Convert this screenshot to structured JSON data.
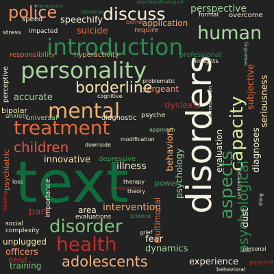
{
  "words": {
    "text": "text",
    "disorders": "disorders",
    "introduction": "introduction",
    "personality": "personality",
    "mental": "mental",
    "treatment": "treatment",
    "human": "human",
    "health": "health",
    "disorder": "disorder",
    "aspects": "aspects",
    "capacity": "capacity",
    "police": "police",
    "discuss": "discuss",
    "borderline": "borderline",
    "adolescents": "adolescents",
    "children": "children",
    "psychological": "psychological",
    "perspective": "perspective",
    "speechify": "speechify",
    "suicide": "suicide",
    "application": "application",
    "accurate": "accurate",
    "sergeant": "sergeant",
    "dyslexia": "dyslexia",
    "innovative": "innovative",
    "illness": "illness",
    "intervention": "intervention",
    "area": "area",
    "part": "part",
    "fear": "fear",
    "dynamics": "dynamics",
    "experience": "experience",
    "unplugged": "unplugged",
    "officers": "officers",
    "training": "training",
    "need": "need",
    "diagnostic": "diagnostic",
    "universal": "universal",
    "bipolar": "bipolar",
    "psyche": "psyche",
    "responsibility": "responsibility",
    "hyperactivity": "hyperactivity",
    "professional": "professional",
    "overcome": "overcome",
    "formal": "formal",
    "require": "require",
    "speed": "speed",
    "stress": "stress",
    "impacted": "impacted",
    "insights": "insights",
    "problematic": "problematic",
    "cognitive": "cognitive",
    "anxiety": "anxiety",
    "approach": "approach",
    "modification": "modification",
    "downside": "downside",
    "depressive": "depressive",
    "loss": "loss",
    "therapy": "therapy",
    "fundamental": "fundamental",
    "theory": "theory",
    "power": "power",
    "evaluations": "evaluations",
    "science": "science",
    "social": "social",
    "complexity": "complexity",
    "personal": "personal",
    "behavioral": "behavioral",
    "common": "common",
    "bother": "bother",
    "therapeutic": "therapeutic",
    "psychopathological": "psychopathological",
    "grief": "grief",
    "psychotic": "psychotic",
    "psychiatric": "psychiatric",
    "perceptive": "perceptive",
    "behaviors": "behaviors",
    "psychology": "psychology",
    "multimodal": "multimodal",
    "importance": "importance",
    "evaluation": "evaluation",
    "diagnoses": "diagnoses",
    "seriousness": "seriousness",
    "subjective": "subjective",
    "dust": "dust",
    "accommodation": "accommodation",
    "healing": "healing",
    "controversial": "controversial",
    "thing": "thing",
    "rewarding": "rewarding"
  }
}
